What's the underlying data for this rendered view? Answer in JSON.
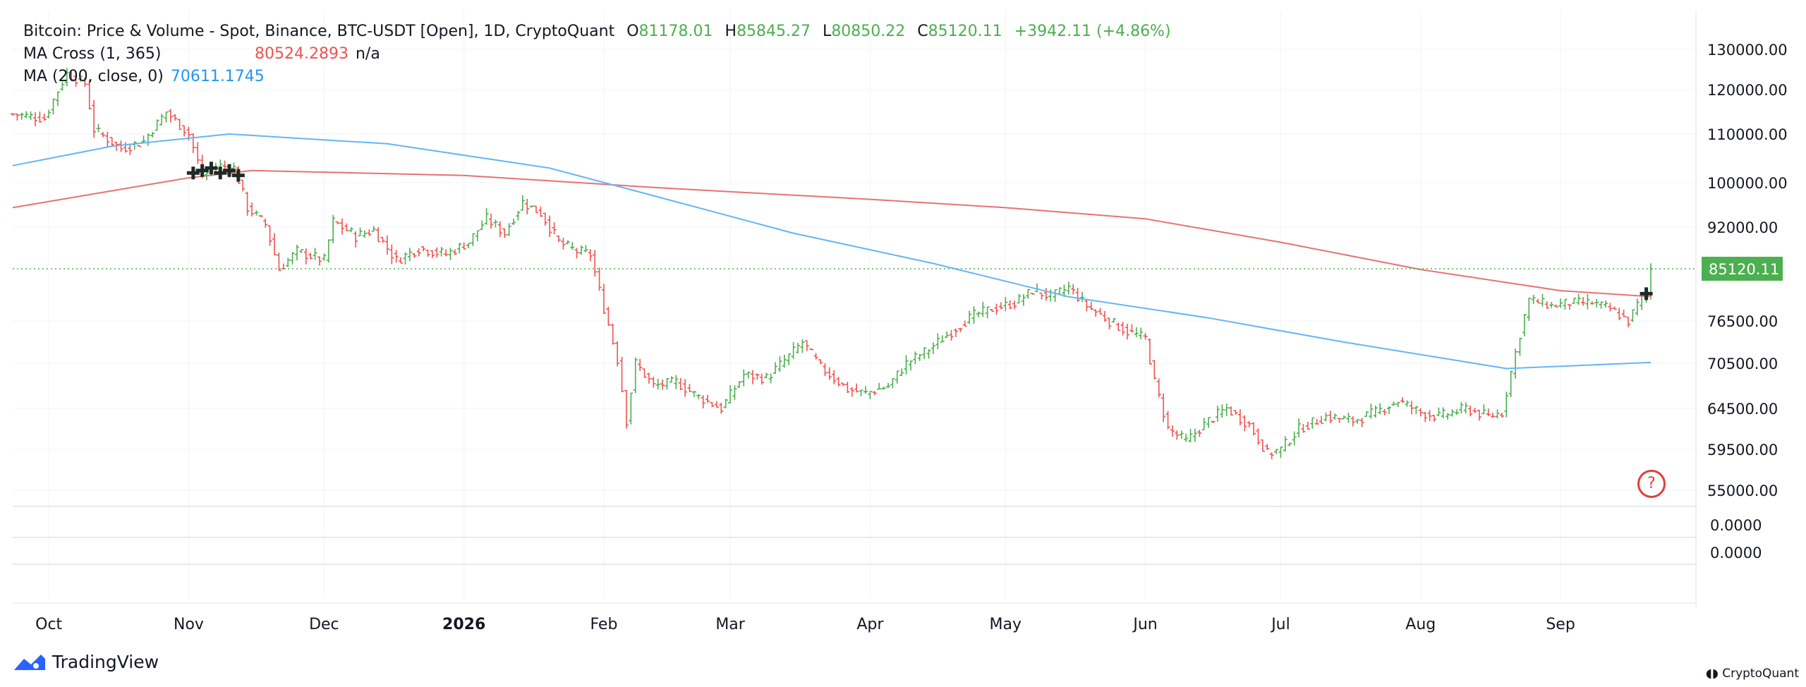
{
  "legend": {
    "title": "Bitcoin: Price & Volume - Spot, Binance, BTC-USDT [Open], 1D, CryptoQuant",
    "ohlc": {
      "o_label": "O",
      "o": "81178.01",
      "h_label": "H",
      "h": "85845.27",
      "l_label": "L",
      "l": "80850.22",
      "c_label": "C",
      "c": "85120.11",
      "change": "+3942.11 (+4.86%)"
    },
    "ma_cross": {
      "label": "MA Cross (1, 365)",
      "value": "80524.2893",
      "extra": "n/a"
    },
    "ma200": {
      "label": "MA (200, close, 0)",
      "value": "70611.1745"
    }
  },
  "price_label": "85120.11",
  "help_button": "?",
  "brand": {
    "tradingview": "TradingView",
    "cryptoquant": "CryptoQuant"
  },
  "colors": {
    "up": "#4caf50",
    "down": "#ef5350",
    "ma365": "#e57373",
    "ma200": "#64b5f6",
    "price_line": "#4caf50",
    "grid": "#f0f3fa",
    "axis_text": "#131722"
  },
  "chart_data": {
    "type": "ohlc",
    "title": "Bitcoin: Price & Volume - Spot, Binance, BTC-USDT [Open], 1D, CryptoQuant",
    "x_ticks": [
      "Oct",
      "Nov",
      "Dec",
      "2026",
      "Feb",
      "Mar",
      "Apr",
      "May",
      "Jun",
      "Jul",
      "Aug",
      "Sep"
    ],
    "y_ticks": [
      "130000.00",
      "120000.00",
      "110000.00",
      "100000.00",
      "92000.00",
      "85120.11",
      "76500.00",
      "70500.00",
      "64500.00",
      "59500.00",
      "55000.00"
    ],
    "sub_ticks": [
      "0.0000",
      "0.0000"
    ],
    "last_close": 85120.11,
    "close_path": [
      [
        "2025-09-23",
        114500
      ],
      [
        "2025-09-30",
        113500
      ],
      [
        "2025-10-05",
        124000
      ],
      [
        "2025-10-09",
        121500
      ],
      [
        "2025-10-11",
        111000
      ],
      [
        "2025-10-17",
        107000
      ],
      [
        "2025-10-22",
        108500
      ],
      [
        "2025-10-27",
        115000
      ],
      [
        "2025-11-01",
        110000
      ],
      [
        "2025-11-04",
        101500
      ],
      [
        "2025-11-08",
        103500
      ],
      [
        "2025-11-11",
        103000
      ],
      [
        "2025-11-14",
        95500
      ],
      [
        "2025-11-18",
        92500
      ],
      [
        "2025-11-21",
        85000
      ],
      [
        "2025-11-25",
        88000
      ],
      [
        "2025-12-01",
        86500
      ],
      [
        "2025-12-03",
        93000
      ],
      [
        "2025-12-08",
        90500
      ],
      [
        "2025-12-12",
        91500
      ],
      [
        "2025-12-17",
        86500
      ],
      [
        "2025-12-22",
        88500
      ],
      [
        "2025-12-28",
        87500
      ],
      [
        "2026-01-02",
        89500
      ],
      [
        "2026-01-06",
        93500
      ],
      [
        "2026-01-10",
        91000
      ],
      [
        "2026-01-14",
        96500
      ],
      [
        "2026-01-18",
        94500
      ],
      [
        "2026-01-22",
        89500
      ],
      [
        "2026-01-26",
        88000
      ],
      [
        "2026-01-29",
        87500
      ],
      [
        "2026-02-01",
        78500
      ],
      [
        "2026-02-04",
        71000
      ],
      [
        "2026-02-06",
        63000
      ],
      [
        "2026-02-08",
        70500
      ],
      [
        "2026-02-12",
        67500
      ],
      [
        "2026-02-17",
        68000
      ],
      [
        "2026-02-22",
        66000
      ],
      [
        "2026-02-27",
        64500
      ],
      [
        "2026-03-04",
        69000
      ],
      [
        "2026-03-09",
        68500
      ],
      [
        "2026-03-14",
        71500
      ],
      [
        "2026-03-17",
        73500
      ],
      [
        "2026-03-21",
        70000
      ],
      [
        "2026-03-27",
        67000
      ],
      [
        "2026-03-31",
        66500
      ],
      [
        "2026-04-05",
        67500
      ],
      [
        "2026-04-09",
        70500
      ],
      [
        "2026-04-14",
        72500
      ],
      [
        "2026-04-19",
        75000
      ],
      [
        "2026-04-24",
        77500
      ],
      [
        "2026-04-28",
        78500
      ],
      [
        "2026-05-03",
        79500
      ],
      [
        "2026-05-07",
        81500
      ],
      [
        "2026-05-11",
        80500
      ],
      [
        "2026-05-15",
        82000
      ],
      [
        "2026-05-19",
        79000
      ],
      [
        "2026-05-24",
        76500
      ],
      [
        "2026-05-28",
        75000
      ],
      [
        "2026-06-01",
        74000
      ],
      [
        "2026-06-03",
        68000
      ],
      [
        "2026-06-06",
        62000
      ],
      [
        "2026-06-10",
        60500
      ],
      [
        "2026-06-15",
        63000
      ],
      [
        "2026-06-19",
        64500
      ],
      [
        "2026-06-24",
        62500
      ],
      [
        "2026-06-28",
        59000
      ],
      [
        "2026-07-01",
        59500
      ],
      [
        "2026-07-05",
        62000
      ],
      [
        "2026-07-11",
        63500
      ],
      [
        "2026-07-17",
        63000
      ],
      [
        "2026-07-22",
        64000
      ],
      [
        "2026-07-27",
        65500
      ],
      [
        "2026-08-01",
        64000
      ],
      [
        "2026-08-05",
        63500
      ],
      [
        "2026-08-11",
        64500
      ],
      [
        "2026-08-16",
        63500
      ],
      [
        "2026-08-19",
        64000
      ],
      [
        "2026-08-22",
        72000
      ],
      [
        "2026-08-25",
        80000
      ],
      [
        "2026-08-30",
        79000
      ],
      [
        "2026-09-03",
        79500
      ],
      [
        "2026-09-08",
        79500
      ],
      [
        "2026-09-12",
        78500
      ],
      [
        "2026-09-16",
        76500
      ],
      [
        "2026-09-19",
        80500
      ],
      [
        "2026-09-20",
        81178.01
      ],
      [
        "2026-09-21",
        85120.11
      ]
    ],
    "ma365": [
      [
        "2025-09-23",
        95500
      ],
      [
        "2025-11-01",
        101000
      ],
      [
        "2025-11-15",
        102500
      ],
      [
        "2026-01-01",
        101500
      ],
      [
        "2026-02-15",
        99000
      ],
      [
        "2026-04-01",
        97000
      ],
      [
        "2026-05-01",
        95500
      ],
      [
        "2026-06-01",
        93500
      ],
      [
        "2026-07-01",
        89500
      ],
      [
        "2026-08-01",
        85000
      ],
      [
        "2026-09-01",
        81500
      ],
      [
        "2026-09-21",
        80524.29
      ]
    ],
    "ma200": [
      [
        "2025-09-23",
        103500
      ],
      [
        "2025-10-15",
        107500
      ],
      [
        "2025-11-10",
        110000
      ],
      [
        "2025-12-15",
        108000
      ],
      [
        "2026-01-20",
        103000
      ],
      [
        "2026-02-15",
        97000
      ],
      [
        "2026-03-15",
        91000
      ],
      [
        "2026-04-15",
        86000
      ],
      [
        "2026-05-15",
        80500
      ],
      [
        "2026-06-15",
        77000
      ],
      [
        "2026-07-15",
        73500
      ],
      [
        "2026-08-20",
        69800
      ],
      [
        "2026-09-21",
        70611.17
      ]
    ],
    "cross_markers": [
      [
        "2025-11-02",
        102000
      ],
      [
        "2025-11-04",
        102500
      ],
      [
        "2025-11-06",
        103000
      ],
      [
        "2025-11-08",
        102000
      ],
      [
        "2025-11-10",
        102500
      ],
      [
        "2025-11-12",
        101500
      ],
      [
        "2026-09-20",
        81000
      ]
    ]
  }
}
